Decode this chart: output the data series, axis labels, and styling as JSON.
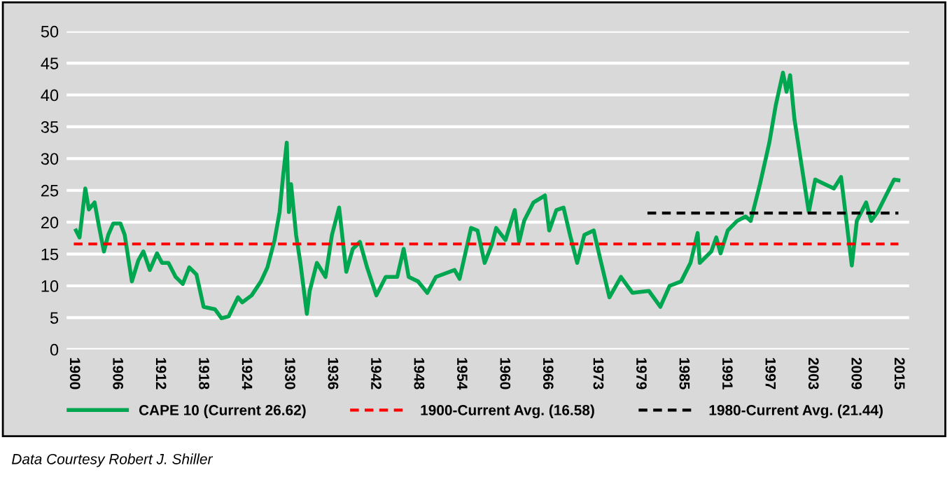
{
  "chart_data": {
    "type": "line",
    "xlim": [
      1899,
      2016.5
    ],
    "xticks": [
      1900,
      1906,
      1912,
      1918,
      1924,
      1930,
      1936,
      1942,
      1948,
      1954,
      1960,
      1966,
      1973,
      1979,
      1985,
      1991,
      1997,
      2003,
      2009,
      2015
    ],
    "ylim": [
      0,
      50
    ],
    "yticks": [
      0,
      5,
      10,
      15,
      20,
      25,
      30,
      35,
      40,
      45,
      50
    ],
    "grid": "y",
    "legend": "bottom",
    "annotations": [
      "Data Courtesy Robert J. Shiller"
    ],
    "series": [
      {
        "name": "CAPE 10 (Current 26.62)",
        "color": "#00a650",
        "line_style": "solid",
        "x": [
          1900.3,
          1900.8,
          1901.6,
          1902.1,
          1902.9,
          1903.5,
          1904.2,
          1904.8,
          1905.5,
          1906.5,
          1907.1,
          1908.1,
          1909,
          1909.7,
          1910.6,
          1911.6,
          1912.3,
          1913.2,
          1914.2,
          1915.2,
          1916.1,
          1917.1,
          1918.1,
          1919.7,
          1920.6,
          1921.6,
          1922.9,
          1923.5,
          1924.8,
          1926.1,
          1927,
          1928,
          1928.7,
          1929.2,
          1929.7,
          1930,
          1930.3,
          1931,
          1931.6,
          1932.5,
          1932.9,
          1933.9,
          1935.1,
          1936,
          1937,
          1938,
          1938.9,
          1939.9,
          1940.9,
          1942.2,
          1943.5,
          1945.1,
          1946,
          1946.7,
          1948,
          1949.3,
          1950.5,
          1953.1,
          1953.8,
          1955.4,
          1956.3,
          1957.3,
          1958.3,
          1958.9,
          1960.2,
          1961.5,
          1962.1,
          1962.8,
          1964.1,
          1965.7,
          1966.3,
          1967.3,
          1968.3,
          1969.2,
          1970.2,
          1971.2,
          1972.5,
          1973.4,
          1974.7,
          1976.3,
          1977.9,
          1980.2,
          1981.8,
          1983.1,
          1984.7,
          1986,
          1987,
          1987.3,
          1988.9,
          1989.6,
          1990.2,
          1991.2,
          1992.5,
          1993.7,
          1994.4,
          1995.7,
          1997,
          1997.9,
          1998.9,
          1999.4,
          1999.9,
          2000.5,
          2001.5,
          2002.5,
          2003.4,
          2004.7,
          2006,
          2007,
          2007.6,
          2008.5,
          2009.2,
          2010.5,
          2011.2,
          2012.1,
          2013.4,
          2014.4,
          2015
        ],
        "values": [
          18.7,
          17.6,
          25.3,
          22,
          23.1,
          19.4,
          15.4,
          18,
          19.8,
          19.8,
          18,
          10.7,
          14,
          15.4,
          12.5,
          15.1,
          13.6,
          13.6,
          11.4,
          10.3,
          12.9,
          11.8,
          6.7,
          6.3,
          4.9,
          5.2,
          8.2,
          7.4,
          8.5,
          10.7,
          12.9,
          17.2,
          21.6,
          27.4,
          32.5,
          21.6,
          26,
          18,
          13.6,
          5.6,
          9.2,
          13.6,
          11.4,
          18,
          22.3,
          12.2,
          15.8,
          16.9,
          12.9,
          8.5,
          11.4,
          11.4,
          15.8,
          11.4,
          10.7,
          8.9,
          11.4,
          12.5,
          11.1,
          19.1,
          18.7,
          13.6,
          16.5,
          19.1,
          17.2,
          21.9,
          16.9,
          20.2,
          23.1,
          24.2,
          18.7,
          21.9,
          22.3,
          18,
          13.6,
          18,
          18.7,
          14.3,
          8.2,
          11.4,
          8.9,
          9.2,
          6.7,
          10,
          10.7,
          13.6,
          18.3,
          13.6,
          15.4,
          17.6,
          15.1,
          18.7,
          20.2,
          20.9,
          20.2,
          26,
          32.5,
          38.4,
          43.5,
          40.5,
          43.1,
          36.2,
          28.9,
          21.6,
          26.7,
          26,
          25.3,
          27.1,
          21.6,
          13.2,
          20.2,
          23.1,
          20.2,
          21.6,
          24.5,
          26.7,
          26.6
        ]
      },
      {
        "name": "1900-Current Avg. (16.58)",
        "color": "#ff0000",
        "line_style": "dashed",
        "x": [
          1900,
          2015
        ],
        "values": [
          16.58,
          16.58
        ]
      },
      {
        "name": "1980-Current Avg. (21.44)",
        "color": "#000000",
        "line_style": "dashed",
        "x": [
          1980,
          2015
        ],
        "values": [
          21.44,
          21.44
        ]
      }
    ]
  }
}
